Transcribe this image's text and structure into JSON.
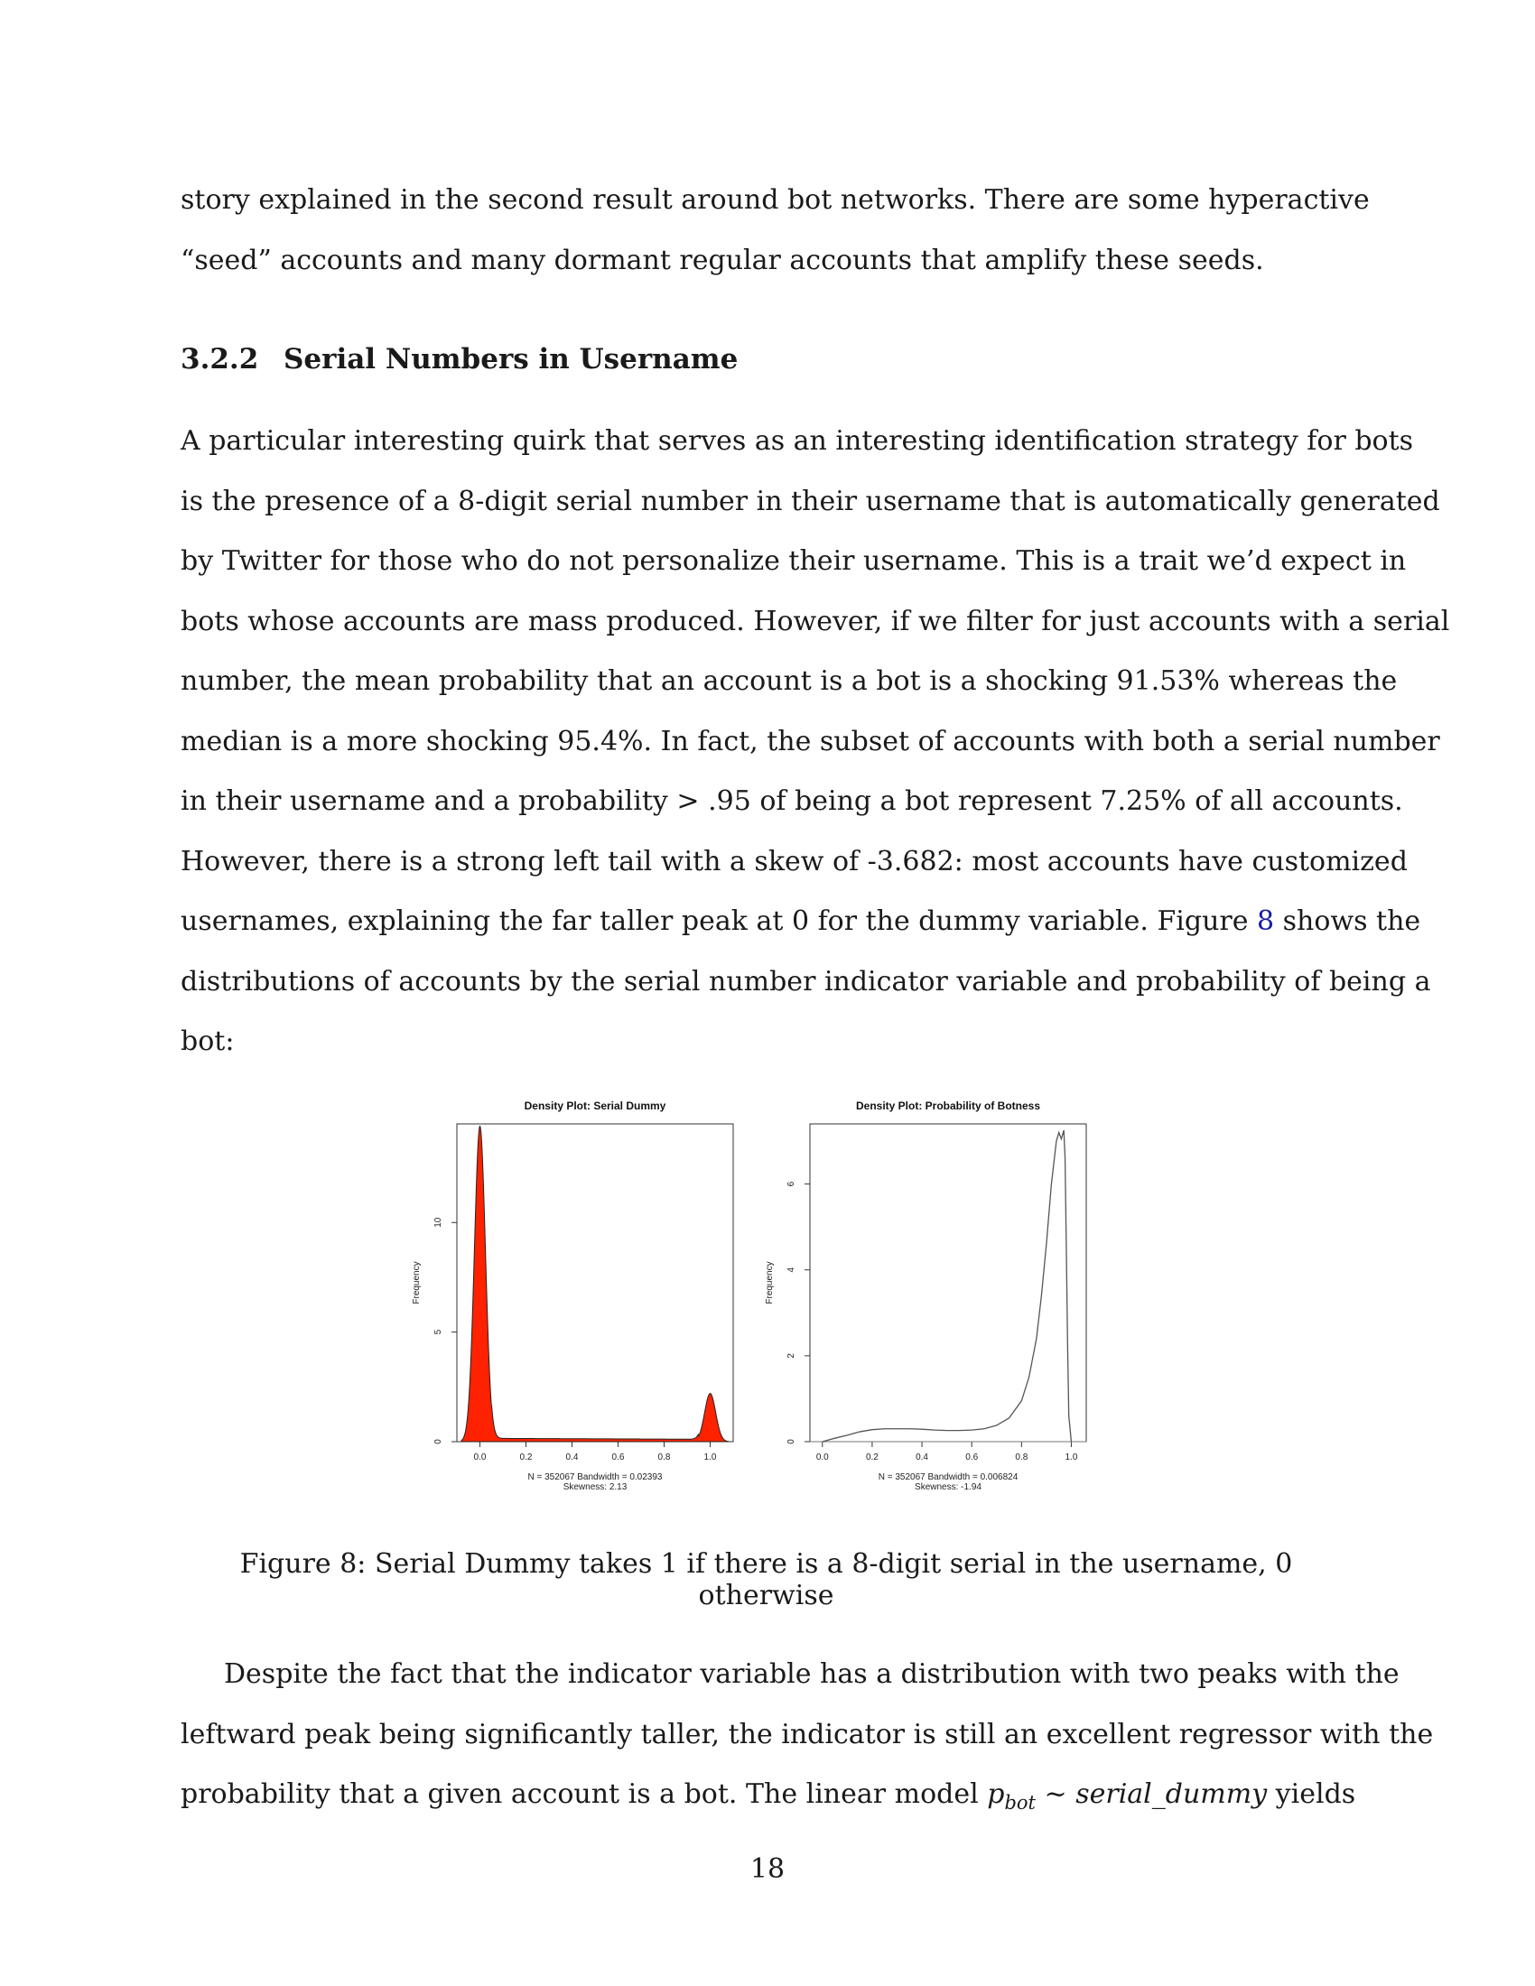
{
  "paragraph1": {
    "lines": [
      "story explained in the second result around bot networks.  There are some hyperactive",
      "“seed” accounts and many dormant regular accounts that amplify these seeds."
    ]
  },
  "section": {
    "number": "3.2.2",
    "title": "Serial Numbers in Username"
  },
  "paragraph2": {
    "lines": [
      "A particular interesting quirk that serves as an interesting identification strategy for bots",
      "is the presence of a 8-digit serial number in their username that is automatically generated",
      "by Twitter for those who do not personalize their username. This is a trait we’d expect in",
      "bots whose accounts are mass produced. However, if we filter for just accounts with a serial",
      "number, the mean probability that an account is a bot is a shocking 91.53% whereas the",
      "median is a more shocking 95.4%. In fact, the subset of accounts with both a serial number",
      "in their username and a probability > .95 of being a bot represent 7.25% of all accounts.",
      "However, there is a strong left tail with a skew of -3.682: most accounts have customized"
    ],
    "line9_before": "usernames, explaining the far taller peak at 0 for the dummy variable. Figure ",
    "line9_link": "8",
    "line9_after": " shows the",
    "line10": "distributions of accounts by the serial number indicator variable and probability of being a",
    "line11": "bot:"
  },
  "figure": {
    "caption": "Figure 8: Serial Dummy takes 1 if there is a 8-digit serial in the username, 0 otherwise"
  },
  "chart_data": [
    {
      "type": "area",
      "title": "Density Plot: Serial Dummy",
      "ylabel": "Frequency",
      "xlabel": "",
      "xlim": [
        -0.1,
        1.1
      ],
      "ylim": [
        0,
        14.5
      ],
      "xticks": [
        "0.0",
        "0.2",
        "0.4",
        "0.6",
        "0.8",
        "1.0"
      ],
      "yticks": [
        "0",
        "5",
        "10"
      ],
      "fill_color": "#ff2200",
      "peaks": [
        {
          "x": 0.0,
          "y": 14.4,
          "sd": 0.024
        },
        {
          "x": 1.0,
          "y": 2.2,
          "sd": 0.024
        }
      ],
      "baseline_y": 0.15,
      "note_line1": "N = 352067   Bandwidth = 0.02393",
      "note_line2": "Skewness: 2.13"
    },
    {
      "type": "line",
      "title": "Density Plot: Probability of Botness",
      "ylabel": "Frequency",
      "xlabel": "",
      "xlim": [
        -0.05,
        1.06
      ],
      "ylim": [
        0,
        7.4
      ],
      "xticks": [
        "0.0",
        "0.2",
        "0.4",
        "0.6",
        "0.8",
        "1.0"
      ],
      "yticks": [
        "0",
        "2",
        "4",
        "6"
      ],
      "line_color": "#555555",
      "x": [
        0.0,
        0.05,
        0.1,
        0.15,
        0.2,
        0.25,
        0.3,
        0.35,
        0.4,
        0.45,
        0.5,
        0.55,
        0.6,
        0.65,
        0.7,
        0.75,
        0.8,
        0.83,
        0.86,
        0.88,
        0.9,
        0.92,
        0.94,
        0.95,
        0.96,
        0.97,
        0.975,
        0.98,
        0.985,
        0.99,
        1.0
      ],
      "y": [
        0.0,
        0.08,
        0.15,
        0.23,
        0.28,
        0.3,
        0.3,
        0.3,
        0.29,
        0.27,
        0.26,
        0.26,
        0.27,
        0.3,
        0.38,
        0.55,
        0.95,
        1.5,
        2.4,
        3.4,
        4.6,
        6.0,
        7.0,
        7.2,
        7.05,
        7.25,
        6.6,
        4.5,
        2.3,
        0.6,
        0.0
      ],
      "note_line1": "N = 352067   Bandwidth = 0.006824",
      "note_line2": "Skewness: -1.94"
    }
  ],
  "paragraph3": {
    "lines": [
      "Despite the fact that the indicator variable has a distribution with two peaks with the",
      "leftward peak being significantly taller, the indicator is still an excellent regressor with the"
    ],
    "line3_before": "probability that a given account is a bot.  The linear model ",
    "line3_p": "p",
    "line3_sub": "bot",
    "line3_tilde": " ~ ",
    "line3_var": "serial_dummy",
    "line3_after": " yields"
  },
  "page_number": "18"
}
